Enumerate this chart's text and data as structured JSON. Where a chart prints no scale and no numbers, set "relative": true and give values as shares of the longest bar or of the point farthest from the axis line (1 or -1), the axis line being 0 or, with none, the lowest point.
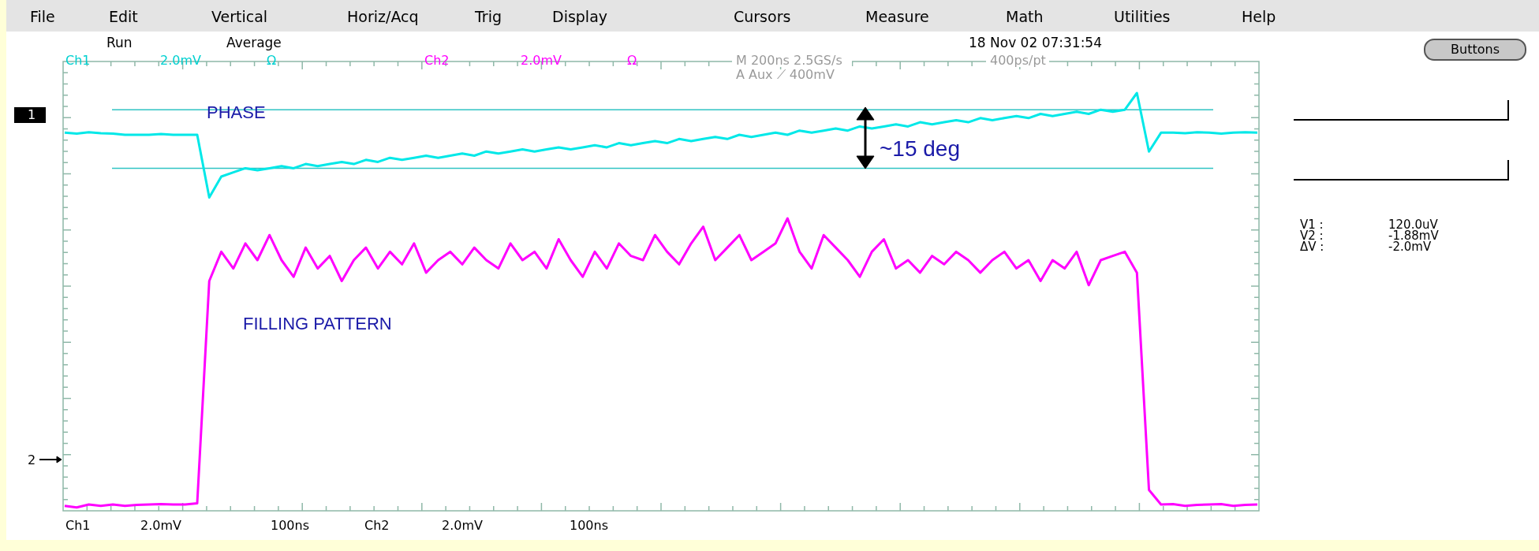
{
  "chart_data": {
    "type": "line",
    "relative": true,
    "legend": false,
    "grid": false,
    "marker": "none",
    "line_style": "solid",
    "categories": [
      null,
      null,
      null,
      null,
      null,
      null,
      null,
      null,
      null,
      null,
      null,
      null,
      null,
      null,
      null,
      null,
      null,
      null,
      null,
      null,
      null,
      null,
      null,
      null,
      null,
      null,
      null,
      null,
      null,
      null,
      null,
      null,
      null,
      null,
      null,
      null,
      null,
      null,
      null,
      null,
      null,
      null,
      null,
      null,
      null,
      null,
      null,
      null,
      null,
      null,
      null,
      null,
      null,
      null,
      null,
      null,
      null,
      null,
      null,
      null,
      null,
      null,
      null,
      null,
      null,
      null,
      null,
      null,
      null,
      null,
      null,
      null,
      null,
      null,
      null,
      null,
      null,
      null,
      null,
      null,
      null,
      null,
      null,
      null,
      null,
      null,
      null,
      null,
      null,
      null,
      null,
      null,
      null,
      null,
      null,
      null,
      null,
      null,
      null,
      null
    ],
    "series": [
      {
        "color": "#00e8e8",
        "values": [
          0.905,
          0.903,
          0.906,
          0.904,
          0.903,
          0.9,
          0.9,
          0.9,
          0.902,
          0.9,
          0.9,
          0.9,
          0.75,
          0.8,
          0.81,
          0.82,
          0.815,
          0.82,
          0.825,
          0.82,
          0.83,
          0.825,
          0.83,
          0.835,
          0.83,
          0.84,
          0.835,
          0.845,
          0.84,
          0.845,
          0.85,
          0.845,
          0.85,
          0.855,
          0.85,
          0.86,
          0.855,
          0.86,
          0.865,
          0.86,
          0.865,
          0.87,
          0.865,
          0.87,
          0.875,
          0.87,
          0.88,
          0.875,
          0.88,
          0.885,
          0.88,
          0.89,
          0.885,
          0.89,
          0.895,
          0.89,
          0.9,
          0.895,
          0.9,
          0.905,
          0.9,
          0.91,
          0.905,
          0.91,
          0.915,
          0.91,
          0.92,
          0.915,
          0.92,
          0.925,
          0.92,
          0.93,
          0.925,
          0.93,
          0.935,
          0.93,
          0.94,
          0.935,
          0.94,
          0.945,
          0.94,
          0.95,
          0.945,
          0.95,
          0.955,
          0.95,
          0.96,
          0.955,
          0.96,
          1,
          0.86,
          0.905,
          0.905,
          0.904,
          0.906,
          0.905,
          0.903,
          0.905,
          0.906,
          0.905
        ]
      },
      {
        "color": "#ff00ff",
        "values": [
          0.012,
          0.008,
          0.015,
          0.012,
          0.015,
          0.012,
          0.014,
          0.015,
          0.016,
          0.015,
          0.015,
          0.018,
          0.55,
          0.62,
          0.58,
          0.64,
          0.6,
          0.66,
          0.6,
          0.56,
          0.63,
          0.58,
          0.61,
          0.55,
          0.6,
          0.63,
          0.58,
          0.62,
          0.59,
          0.64,
          0.57,
          0.6,
          0.62,
          0.59,
          0.63,
          0.6,
          0.58,
          0.64,
          0.6,
          0.62,
          0.58,
          0.65,
          0.6,
          0.56,
          0.62,
          0.58,
          0.64,
          0.61,
          0.6,
          0.66,
          0.62,
          0.59,
          0.64,
          0.68,
          0.6,
          0.63,
          0.66,
          0.6,
          0.62,
          0.64,
          0.7,
          0.62,
          0.58,
          0.66,
          0.63,
          0.6,
          0.56,
          0.62,
          0.65,
          0.58,
          0.6,
          0.57,
          0.61,
          0.59,
          0.62,
          0.6,
          0.57,
          0.6,
          0.62,
          0.58,
          0.6,
          0.55,
          0.6,
          0.58,
          0.62,
          0.54,
          0.6,
          0.61,
          0.62,
          0.57,
          0.05,
          0.015,
          0.016,
          0.012,
          0.014,
          0.015,
          0.016,
          0.012,
          0.014,
          0.015
        ]
      }
    ],
    "ref_lines": [
      {
        "axis": "y",
        "value": 0.96,
        "color": "#30c4c4"
      },
      {
        "axis": "y",
        "value": 0.82,
        "color": "#30c4c4"
      }
    ],
    "annotations": [
      "File",
      "Edit",
      "Vertical",
      "Horiz/Acq",
      "Trig",
      "Display",
      "Cursors",
      "Measure",
      "Math",
      "Utilities",
      "Help",
      "Run",
      "Average",
      "18 Nov 02 07:31:54",
      "Ch1",
      "2.0mV",
      "Ω",
      "Ch2",
      "2.0mV",
      "Ω",
      "M 200ns 2.5GS/s",
      "400ps/pt",
      "A Aux ⟋ 400mV",
      "Buttons",
      "V1 :",
      "120.0uV",
      "V2 :",
      "-1.88mV",
      "ΔV :",
      "-2.0mV",
      "Ch1",
      "2.0mV",
      "100ns",
      "Ch2",
      "2.0mV",
      "100ns",
      "PHASE",
      "FILLING PATTERN",
      "~15 deg",
      "1",
      "2"
    ]
  }
}
